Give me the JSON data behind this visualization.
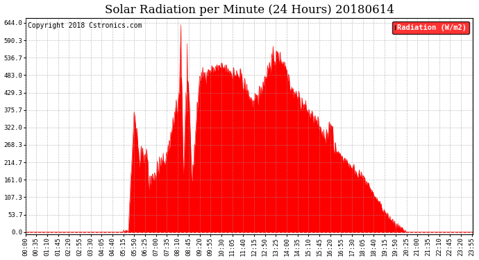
{
  "title": "Solar Radiation per Minute (24 Hours) 20180614",
  "copyright_text": "Copyright 2018 Cstronics.com",
  "legend_label": "Radiation (W/m2)",
  "background_color": "#ffffff",
  "plot_bg_color": "#ffffff",
  "fill_color": "#ff0000",
  "line_color": "#ff0000",
  "grid_color": "#999999",
  "ytick_values": [
    0.0,
    53.7,
    107.3,
    161.0,
    214.7,
    268.3,
    322.0,
    375.7,
    429.3,
    483.0,
    536.7,
    590.3,
    644.0
  ],
  "ymax": 660,
  "ymin": -8,
  "title_fontsize": 12,
  "axis_fontsize": 6.5,
  "legend_fontsize": 7.5,
  "copyright_fontsize": 7
}
